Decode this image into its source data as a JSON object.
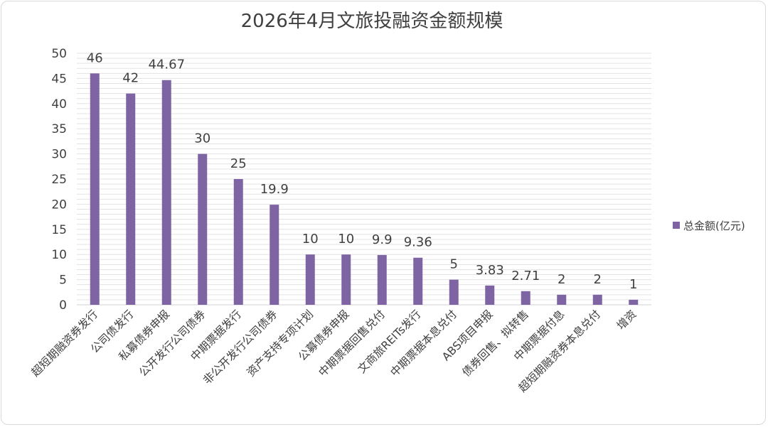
{
  "chart_data": {
    "type": "bar",
    "title": "2026年4月文旅投融资金额规模",
    "categories": [
      "超短期融资券发行",
      "公司债发行",
      "私募债券申报",
      "公开发行公司债券",
      "中期票据发行",
      "非公开发行公司债券",
      "资产支持专项计划",
      "公募债券申报",
      "中期票据回售兑付",
      "文商旅REITs发行",
      "中期票据本息兑付",
      "ABS项目申报",
      "债券回售、拟转售",
      "中期票据付息",
      "超短期融资券本息兑付",
      "增资"
    ],
    "series": [
      {
        "name": "总金额(亿元)",
        "values": [
          46,
          42,
          44.67,
          30,
          25,
          19.9,
          10,
          10,
          9.9,
          9.36,
          5,
          3.83,
          2.71,
          2,
          2,
          1
        ],
        "labels": [
          "46",
          "42",
          "44.67",
          "30",
          "25",
          "19.9",
          "10",
          "10",
          "9.9",
          "9.36",
          "5",
          "3.83",
          "2.71",
          "2",
          "2",
          "1"
        ]
      }
    ],
    "ylim": [
      0,
      50
    ],
    "yticks": [
      "0",
      "5",
      "10",
      "15",
      "20",
      "25",
      "30",
      "35",
      "40",
      "45",
      "50"
    ],
    "grid": true,
    "legend_position": "right",
    "colors": {
      "bar": "#7f64a4",
      "grid": "#e3e3e3",
      "text": "#404040"
    }
  }
}
